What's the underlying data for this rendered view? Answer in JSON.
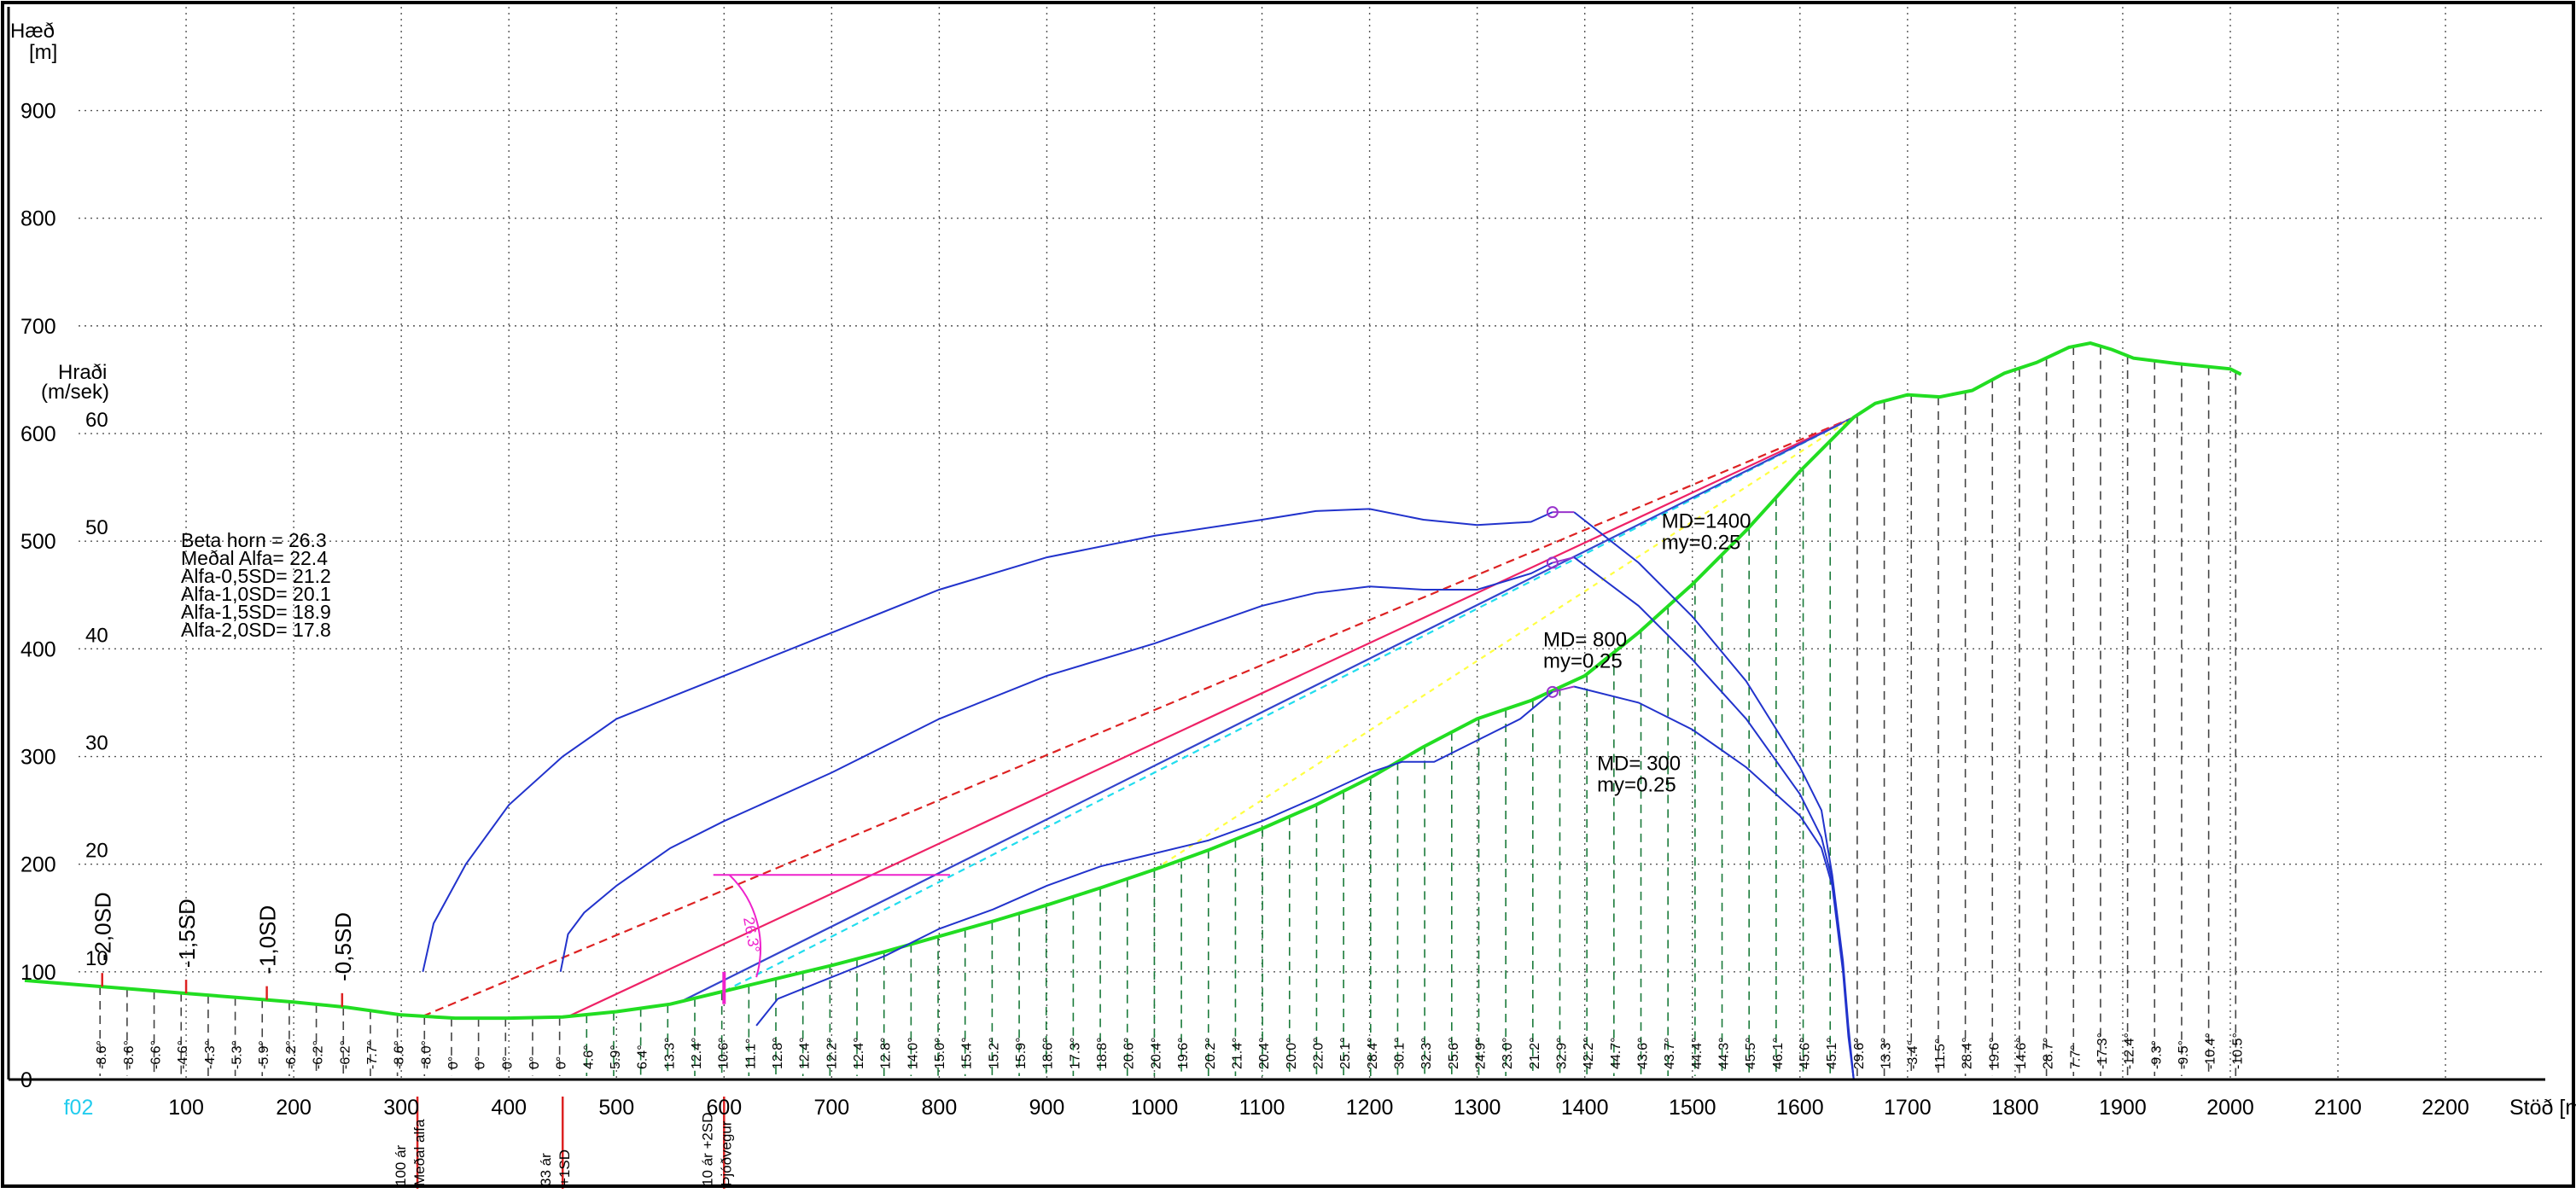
{
  "chart_data": {
    "type": "line",
    "ylabel": "Hæð [m]",
    "xlabel": "Stöð [m]",
    "xlim": [
      -50,
      2300
    ],
    "ylim": [
      0,
      1000
    ],
    "grid": true,
    "x_ticks": [
      0,
      100,
      200,
      300,
      400,
      500,
      600,
      700,
      800,
      900,
      1000,
      1100,
      1200,
      1300,
      1400,
      1500,
      1600,
      1700,
      1800,
      1900,
      2000,
      2100,
      2200
    ],
    "x_tick_labels": [
      "f02",
      "100",
      "200",
      "300",
      "400",
      "500",
      "600",
      "700",
      "800",
      "900",
      "1000",
      "1100",
      "1200",
      "1300",
      "1400",
      "1500",
      "1600",
      "1700",
      "1800",
      "1900",
      "2000",
      "2100",
      "2200"
    ],
    "y_ticks": [
      0,
      100,
      200,
      300,
      400,
      500,
      600,
      700,
      800,
      900
    ],
    "speed_axis": {
      "label": "Hraði (m/sek)",
      "ticks": [
        10,
        20,
        30,
        40,
        50,
        60
      ],
      "positions_m": [
        100,
        200,
        300,
        400,
        500,
        600
      ]
    },
    "stats_text": [
      "Beta horn = 26.3",
      "Meðal Alfa= 22.4",
      "Alfa-0,5SD= 21.2",
      "Alfa-1,0SD= 20.1",
      "Alfa-1,5SD= 18.9",
      "Alfa-2,0SD= 17.8"
    ],
    "terrain": {
      "color": "#22dd22",
      "x": [
        -50,
        0,
        50,
        100,
        150,
        200,
        250,
        300,
        350,
        400,
        450,
        500,
        550,
        600,
        650,
        700,
        750,
        800,
        850,
        900,
        950,
        1000,
        1050,
        1100,
        1150,
        1200,
        1250,
        1300,
        1350,
        1400,
        1450,
        1500,
        1550,
        1600,
        1650,
        1670,
        1700,
        1730,
        1760,
        1790,
        1820,
        1850,
        1870,
        1890,
        1910,
        1950,
        2000,
        2010
      ],
      "y": [
        92,
        88,
        84,
        80,
        76,
        72,
        67,
        60,
        57,
        57,
        58,
        63,
        70,
        82,
        94,
        106,
        119,
        133,
        147,
        162,
        178,
        195,
        213,
        233,
        255,
        280,
        309,
        335,
        352,
        375,
        415,
        460,
        510,
        565,
        615,
        628,
        636,
        634,
        640,
        656,
        666,
        680,
        684,
        678,
        670,
        665,
        660,
        655
      ]
    },
    "station_angles": [
      "-8.6°",
      "-8.6°",
      "-6.6°",
      "-4.6°",
      "-4.3°",
      "-5.3°",
      "-5.9°",
      "-6.2°",
      "-6.2°",
      "-6.2°",
      "-7.7°",
      "-8.6°",
      "-8.0°",
      "0°",
      "0°",
      "0°",
      "0°",
      "0°",
      "4.6°",
      "5.9°",
      "6.4°",
      "13.3°",
      "12.4°",
      "10.6°",
      "11.1°",
      "12.8°",
      "12.4°",
      "12.2°",
      "12.4°",
      "12.8°",
      "14.0°",
      "15.0°",
      "15.4°",
      "15.2°",
      "15.9°",
      "18.6°",
      "17.3°",
      "18.8°",
      "20.6°",
      "20.4°",
      "19.6°",
      "20.2°",
      "21.4°",
      "20.4°",
      "20.0°",
      "22.0°",
      "25.1°",
      "28.4°",
      "30.1°",
      "32.3°",
      "25.6°",
      "24.9°",
      "23.0°",
      "21.2°",
      "32.9°",
      "42.2°",
      "44.7°",
      "43.6°",
      "43.7°",
      "44.4°",
      "44.3°",
      "45.5°",
      "46.1°",
      "45.6°",
      "45.1°",
      "29.6°",
      "13.3°",
      "-3.4°",
      "11.5°",
      "28.4°",
      "19.6°",
      "14.6°",
      "28.7°",
      "7.7°",
      "-17.3°",
      "-12.4°",
      "-9.3°",
      "-9.5°",
      "-10.4°",
      "-10.5°"
    ],
    "runout_markers": [
      {
        "label": "-2,0SD",
        "x": 22
      },
      {
        "label": "-1,5SD",
        "x": 100
      },
      {
        "label": "-1,0SD",
        "x": 175
      },
      {
        "label": "-0,5SD",
        "x": 245
      }
    ],
    "bottom_markers": [
      {
        "lines": [
          "100 ár",
          "Meðal alfa"
        ],
        "x": 315
      },
      {
        "lines": [
          "33 ár",
          "+1SD"
        ],
        "x": 450
      },
      {
        "lines": [
          "10 ár +2SD",
          "Þjóðvegur"
        ],
        "x": 600
      }
    ],
    "speed_curves": [
      {
        "name": "MD=1400",
        "line2": "my=0.25",
        "color": "#2233cc",
        "x": [
          320,
          330,
          360,
          400,
          450,
          500,
          550,
          600,
          700,
          800,
          900,
          1000,
          1100,
          1150,
          1200,
          1250,
          1300,
          1350,
          1370
        ],
        "y": [
          100,
          145,
          200,
          255,
          300,
          335,
          355,
          375,
          415,
          455,
          485,
          505,
          520,
          528,
          530,
          520,
          515,
          518,
          527
        ]
      },
      {
        "name": "MD= 800",
        "line2": "my=0.25",
        "color": "#2233cc",
        "x": [
          448,
          455,
          470,
          500,
          550,
          600,
          700,
          800,
          900,
          1000,
          1100,
          1150,
          1200,
          1250,
          1300,
          1350,
          1370
        ],
        "y": [
          100,
          135,
          155,
          180,
          215,
          240,
          285,
          335,
          375,
          405,
          440,
          452,
          458,
          455,
          455,
          470,
          480
        ]
      },
      {
        "name": "MD= 300",
        "line2": "my=0.25",
        "color": "#2233cc",
        "x": [
          630,
          650,
          700,
          750,
          800,
          850,
          900,
          950,
          1000,
          1050,
          1100,
          1150,
          1200,
          1230,
          1260,
          1300,
          1340,
          1370
        ],
        "y": [
          50,
          75,
          95,
          115,
          140,
          158,
          180,
          198,
          210,
          222,
          240,
          262,
          285,
          295,
          295,
          315,
          335,
          360
        ]
      }
    ],
    "decay_curves": {
      "color": "#2233cc",
      "x": [
        1390,
        1450,
        1500,
        1550,
        1600,
        1620,
        1630,
        1640,
        1645,
        1650
      ],
      "y1400": [
        527,
        480,
        430,
        370,
        290,
        250,
        190,
        110,
        50,
        0
      ],
      "y800": [
        485,
        440,
        390,
        335,
        265,
        225,
        185,
        105,
        45,
        0
      ],
      "y300": [
        365,
        350,
        325,
        290,
        245,
        215,
        180,
        100,
        40,
        0
      ]
    },
    "alpha_lines": {
      "end": [
        1650,
        615
      ],
      "lines": [
        {
          "color": "#dd2222",
          "dash": "10,6",
          "start_x": 320
        },
        {
          "color": "#ee2266",
          "dash": "",
          "start_x": 455
        },
        {
          "color": "#22ddee",
          "dash": "8,6",
          "start_x": 600
        },
        {
          "color": "#3344cc",
          "dash": "",
          "start_x": 560
        },
        {
          "color": "#ffff44",
          "dash": "6,6",
          "start_x": 1000
        }
      ]
    },
    "beta_angle_label": "26.3°"
  }
}
